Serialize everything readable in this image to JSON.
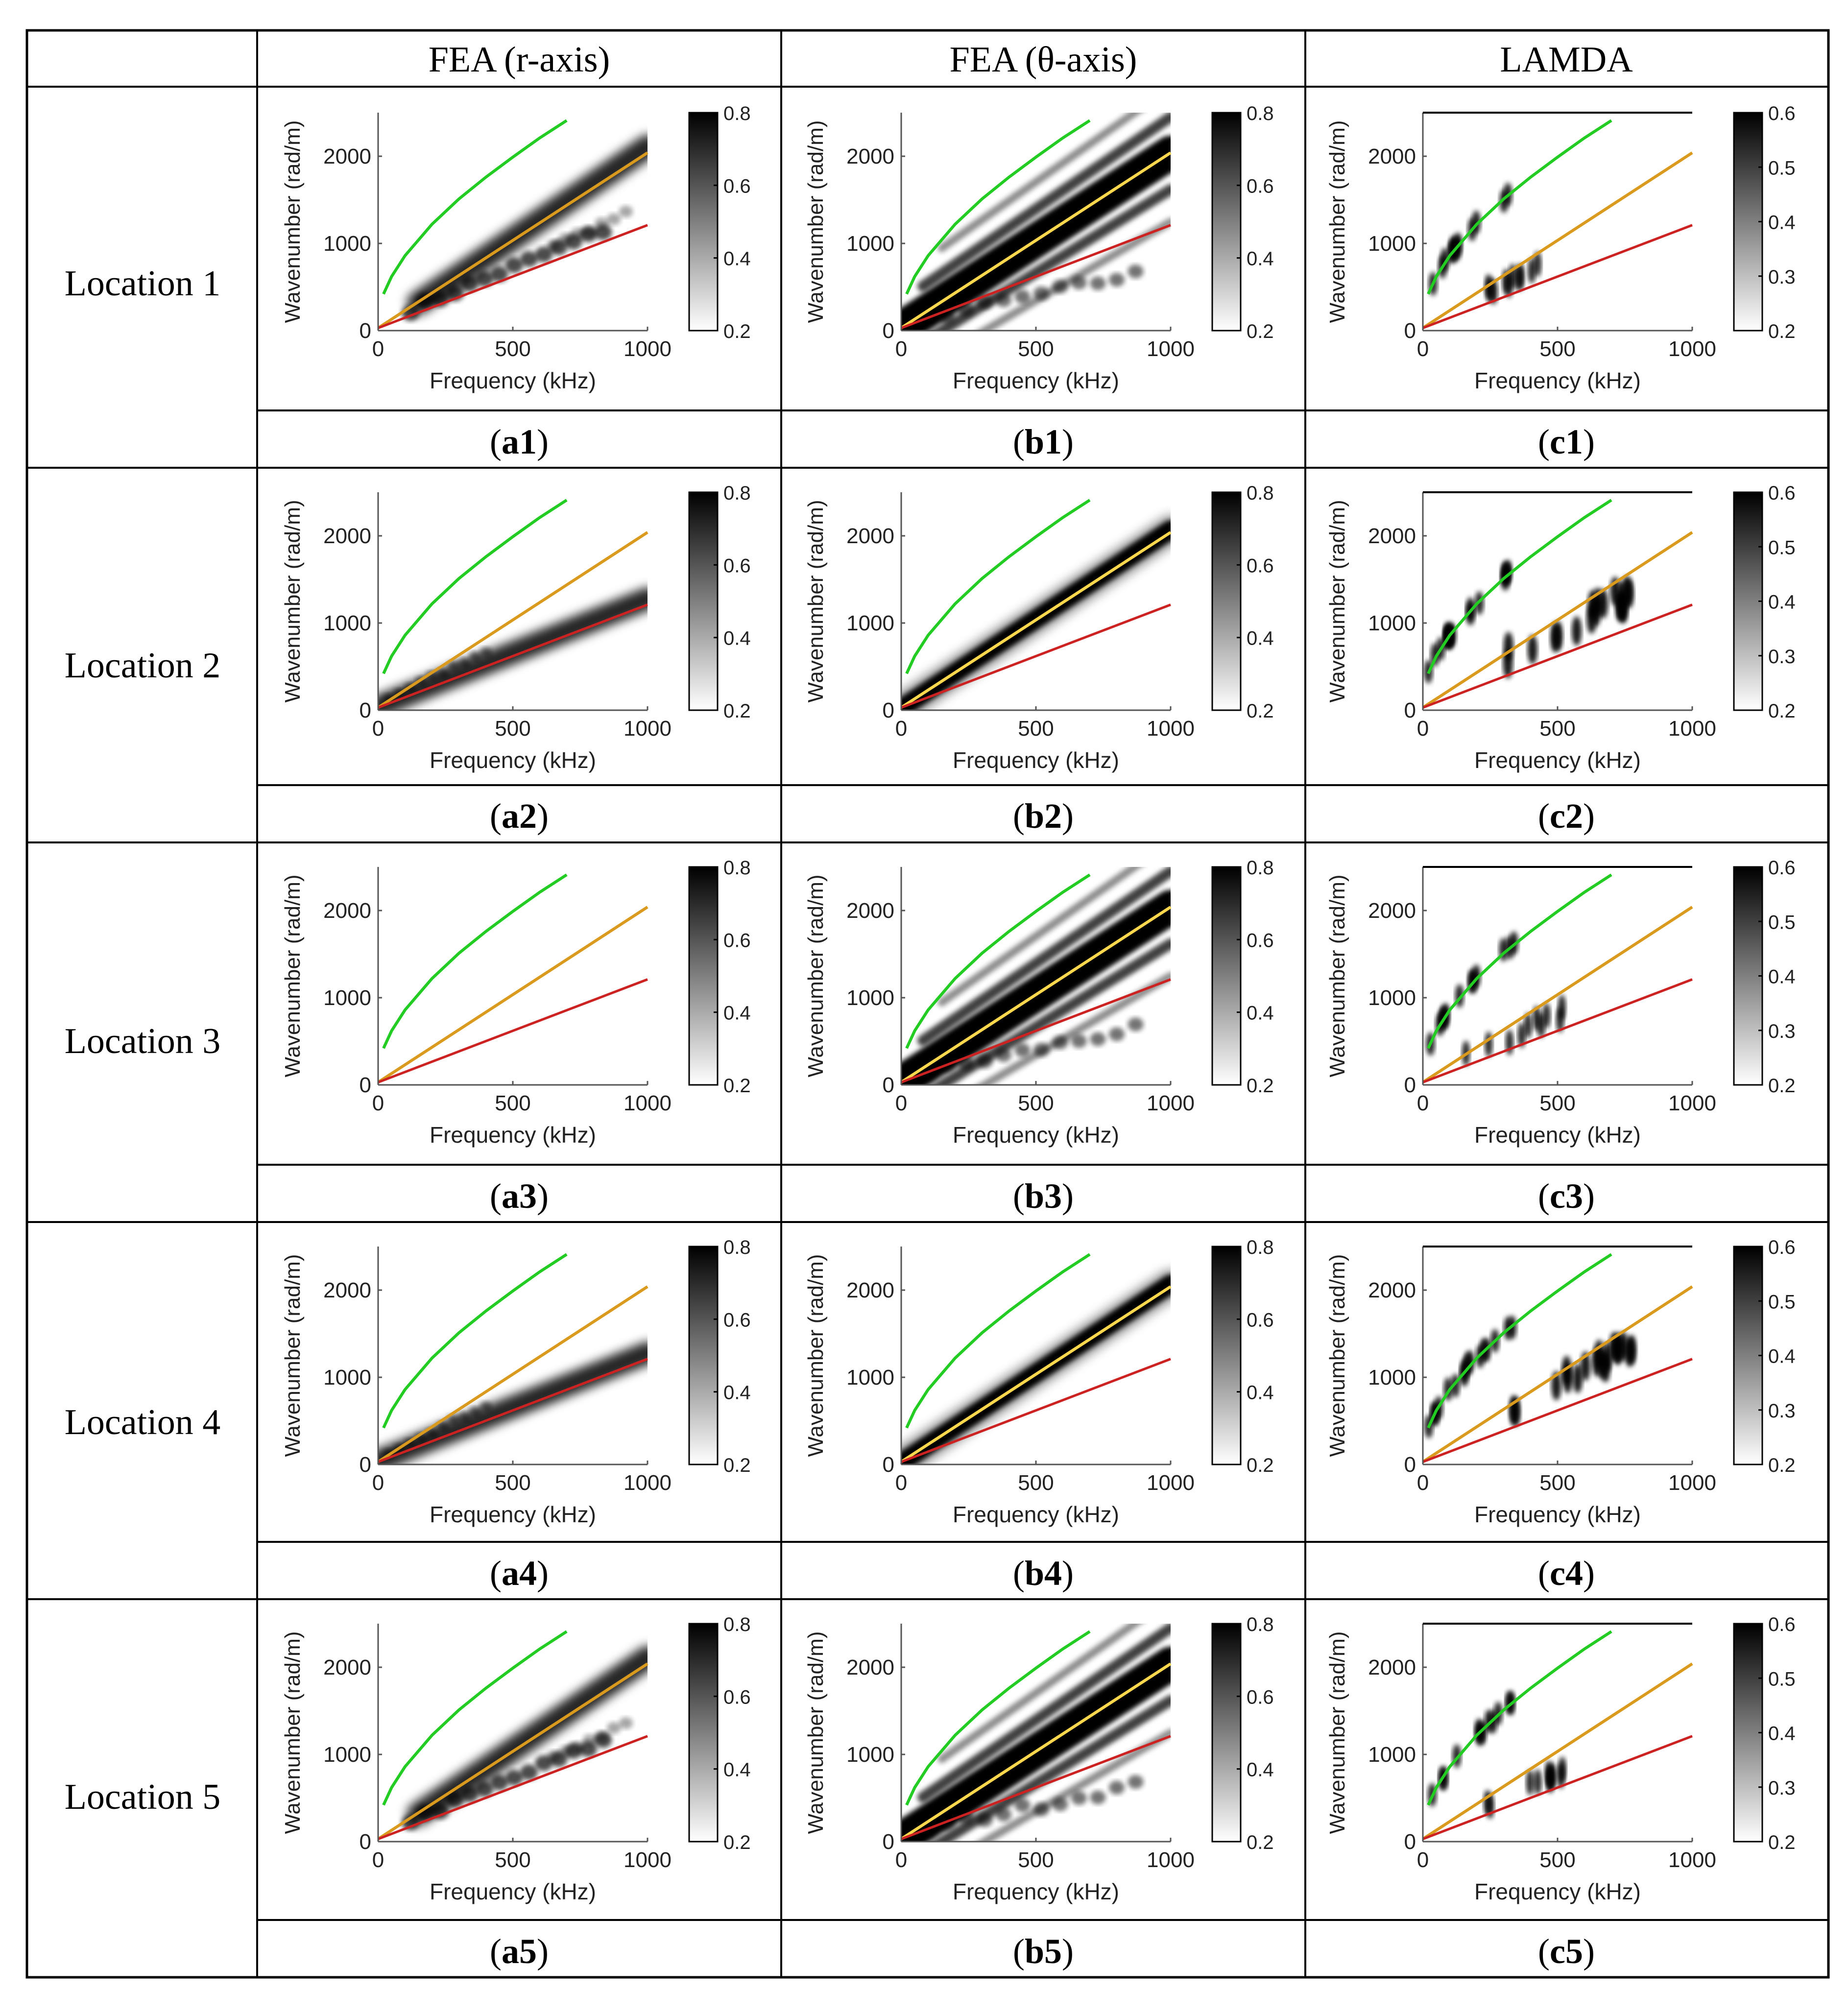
{
  "header": {
    "col_labels": [
      "FEA (r-axis)",
      "FEA (θ-axis)",
      "LAMDA"
    ]
  },
  "rows": [
    {
      "label": "Location 1",
      "captions": [
        [
          "a",
          "1"
        ],
        [
          "b",
          "1"
        ],
        [
          "c",
          "1"
        ]
      ]
    },
    {
      "label": "Location 2",
      "captions": [
        [
          "a",
          "2"
        ],
        [
          "b",
          "2"
        ],
        [
          "c",
          "2"
        ]
      ]
    },
    {
      "label": "Location 3",
      "captions": [
        [
          "a",
          "3"
        ],
        [
          "b",
          "3"
        ],
        [
          "c",
          "3"
        ]
      ]
    },
    {
      "label": "Location 4",
      "captions": [
        [
          "a",
          "4"
        ],
        [
          "b",
          "4"
        ],
        [
          "c",
          "4"
        ]
      ]
    },
    {
      "label": "Location 5",
      "captions": [
        [
          "a",
          "5"
        ],
        [
          "b",
          "5"
        ],
        [
          "c",
          "5"
        ]
      ]
    }
  ],
  "colors": {
    "green_mode": "#22cc22",
    "orange_mode": "#d99a1e",
    "red_mode": "#cc2222",
    "yellow_mode": "#ffd84d"
  },
  "chart_data": {
    "type": "heatmap",
    "xlabel": "Frequency (kHz)",
    "ylabel": "Wavenumber (rad/m)",
    "xlim": [
      0,
      1000
    ],
    "ylim": [
      0,
      2500
    ],
    "xticks": [
      0,
      500,
      1000
    ],
    "yticks": [
      0,
      1000,
      2000
    ],
    "mode_curves": [
      {
        "name": "green",
        "x": [
          20,
          50,
          100,
          200,
          300,
          400,
          500,
          600,
          700
        ],
        "y": [
          420,
          620,
          860,
          1220,
          1510,
          1760,
          1990,
          2210,
          2410
        ]
      },
      {
        "name": "orange",
        "x": [
          0,
          1000
        ],
        "y": [
          30,
          2040
        ]
      },
      {
        "name": "red",
        "x": [
          0,
          1000
        ],
        "y": [
          30,
          1210
        ]
      }
    ],
    "colorbars": {
      "FEA": {
        "ticks": [
          "0.2",
          "0.4",
          "0.6",
          "0.8"
        ],
        "range": [
          0.2,
          0.8
        ]
      },
      "LAMDA": {
        "ticks": [
          "0.2",
          "0.3",
          "0.4",
          "0.5",
          "0.6"
        ],
        "range": [
          0.2,
          0.6
        ]
      }
    }
  }
}
